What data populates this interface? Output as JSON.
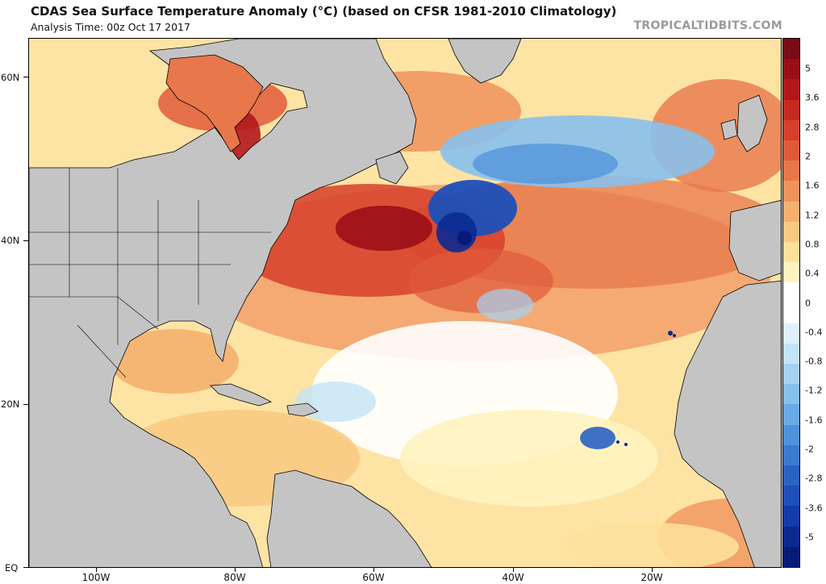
{
  "header": {
    "title": "CDAS Sea Surface Temperature Anomaly (°C) (based on CFSR 1981-2010 Climatology)",
    "subtitle": "Analysis Time: 00z Oct 17 2017",
    "brand": "TROPICALTIDBITS.COM"
  },
  "map": {
    "lat_labels": [
      "60N",
      "40N",
      "20N",
      "EQ"
    ],
    "lon_labels": [
      "100W",
      "80W",
      "60W",
      "40W",
      "20W"
    ],
    "colors": {
      "land": "#c4c4c4",
      "coast": "#000000"
    }
  },
  "colorbar": {
    "labels": [
      "5",
      "3.6",
      "2.8",
      "2",
      "1.6",
      "1.2",
      "0.8",
      "0.4",
      "0",
      "-0.4",
      "-0.8",
      "-1.2",
      "-1.6",
      "-2",
      "-2.8",
      "-3.6",
      "-5"
    ],
    "colors": [
      "#7a0a16",
      "#9a0e18",
      "#b3171c",
      "#c52a22",
      "#d6402c",
      "#e05a3a",
      "#e8774b",
      "#ef935c",
      "#f5b06e",
      "#f9c983",
      "#fde09b",
      "#fff3c0",
      "#ffffff",
      "#ffffff",
      "#dff1fb",
      "#c3e3f7",
      "#a6d2f2",
      "#88c0ec",
      "#6aaae4",
      "#4f92db",
      "#3a7ad0",
      "#2963c4",
      "#1c4fb8",
      "#123ca8",
      "#0a2a92",
      "#061b78"
    ]
  }
}
